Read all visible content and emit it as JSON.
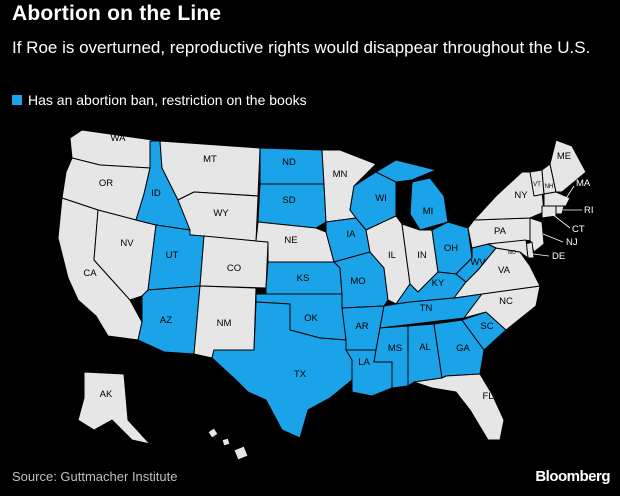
{
  "header": {
    "title": "Abortion on the Line",
    "subtitle": "If Roe is overturned, reproductive rights would disappear throughout the U.S."
  },
  "legend": {
    "label": "Has an abortion ban, restriction on the books",
    "color": "#1aa3e8"
  },
  "colors": {
    "restricted": "#1aa3e8",
    "unrestricted": "#e6e6e6",
    "background": "#000000"
  },
  "states": {
    "WA": {
      "label": "WA",
      "restricted": false
    },
    "OR": {
      "label": "OR",
      "restricted": false
    },
    "CA": {
      "label": "CA",
      "restricted": false
    },
    "NV": {
      "label": "NV",
      "restricted": false
    },
    "ID": {
      "label": "ID",
      "restricted": true
    },
    "MT": {
      "label": "MT",
      "restricted": false
    },
    "WY": {
      "label": "WY",
      "restricted": false
    },
    "UT": {
      "label": "UT",
      "restricted": true
    },
    "AZ": {
      "label": "AZ",
      "restricted": true
    },
    "CO": {
      "label": "CO",
      "restricted": false
    },
    "NM": {
      "label": "NM",
      "restricted": false
    },
    "ND": {
      "label": "ND",
      "restricted": true
    },
    "SD": {
      "label": "SD",
      "restricted": true
    },
    "NE": {
      "label": "NE",
      "restricted": false
    },
    "KS": {
      "label": "KS",
      "restricted": true
    },
    "OK": {
      "label": "OK",
      "restricted": true
    },
    "TX": {
      "label": "TX",
      "restricted": true
    },
    "MN": {
      "label": "MN",
      "restricted": false
    },
    "IA": {
      "label": "IA",
      "restricted": true
    },
    "MO": {
      "label": "MO",
      "restricted": true
    },
    "AR": {
      "label": "AR",
      "restricted": true
    },
    "LA": {
      "label": "LA",
      "restricted": true
    },
    "WI": {
      "label": "WI",
      "restricted": true
    },
    "IL": {
      "label": "IL",
      "restricted": false
    },
    "MI": {
      "label": "MI",
      "restricted": true
    },
    "IN": {
      "label": "IN",
      "restricted": false
    },
    "OH": {
      "label": "OH",
      "restricted": true
    },
    "KY": {
      "label": "KY",
      "restricted": true
    },
    "TN": {
      "label": "TN",
      "restricted": true
    },
    "MS": {
      "label": "MS",
      "restricted": true
    },
    "AL": {
      "label": "AL",
      "restricted": true
    },
    "GA": {
      "label": "GA",
      "restricted": true
    },
    "FL": {
      "label": "FL",
      "restricted": false
    },
    "SC": {
      "label": "SC",
      "restricted": true
    },
    "NC": {
      "label": "NC",
      "restricted": false
    },
    "VA": {
      "label": "VA",
      "restricted": false
    },
    "WV": {
      "label": "WV",
      "restricted": true
    },
    "PA": {
      "label": "PA",
      "restricted": false
    },
    "NY": {
      "label": "NY",
      "restricted": false
    },
    "VT": {
      "label": "VT",
      "restricted": false
    },
    "NH": {
      "label": "NH",
      "restricted": false
    },
    "ME": {
      "label": "ME",
      "restricted": false
    },
    "MA": {
      "label": "MA",
      "restricted": false
    },
    "RI": {
      "label": "RI",
      "restricted": false
    },
    "CT": {
      "label": "CT",
      "restricted": false
    },
    "NJ": {
      "label": "NJ",
      "restricted": false
    },
    "DE": {
      "label": "DE",
      "restricted": false
    },
    "MD": {
      "label": "MD",
      "restricted": false
    },
    "AK": {
      "label": "AK",
      "restricted": false
    },
    "HI": {
      "label": "",
      "restricted": false
    }
  },
  "footer": {
    "source": "Source: Guttmacher Institute",
    "brand": "Bloomberg"
  }
}
